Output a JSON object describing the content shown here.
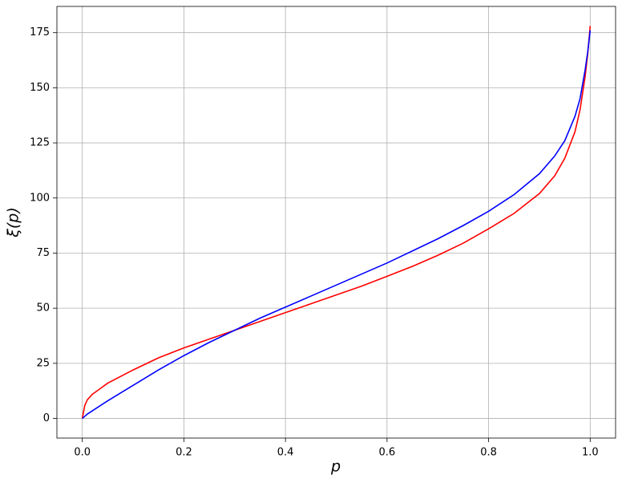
{
  "chart_data": {
    "type": "line",
    "xlabel": "p",
    "ylabel": "ξ(p)",
    "x": [
      0,
      0.005,
      0.01,
      0.02,
      0.05,
      0.1,
      0.15,
      0.2,
      0.25,
      0.3,
      0.35,
      0.4,
      0.45,
      0.5,
      0.55,
      0.6,
      0.65,
      0.7,
      0.75,
      0.8,
      0.85,
      0.9,
      0.93,
      0.95,
      0.97,
      0.98,
      0.99,
      0.995,
      1.0
    ],
    "series": [
      {
        "color": "#ff0000",
        "values": [
          0,
          6,
          8.5,
          11,
          16,
          22,
          27.5,
          32,
          36,
          40,
          44,
          48,
          52,
          56,
          60,
          64.5,
          69,
          74,
          79.5,
          86,
          93,
          102,
          110,
          118,
          130,
          140,
          155,
          165,
          178
        ]
      },
      {
        "color": "#0000ff",
        "values": [
          0,
          1,
          2,
          3.5,
          8,
          15,
          22,
          28.5,
          34.5,
          40,
          45.5,
          50.5,
          55.5,
          60.5,
          65.5,
          70.5,
          76,
          81.5,
          87.5,
          94,
          101.5,
          111,
          119,
          126,
          137,
          145,
          158,
          166,
          176
        ]
      }
    ],
    "xlim": [
      -0.05,
      1.05
    ],
    "xticks": [
      {
        "value": 0,
        "label": "0.0"
      },
      0.2,
      0.4,
      0.6,
      0.8,
      {
        "value": 1,
        "label": "1.0"
      }
    ],
    "ylim": [
      -8.9,
      186.9
    ],
    "yticks": [
      0,
      25,
      50,
      75,
      100,
      125,
      150,
      175
    ],
    "grid": true
  }
}
